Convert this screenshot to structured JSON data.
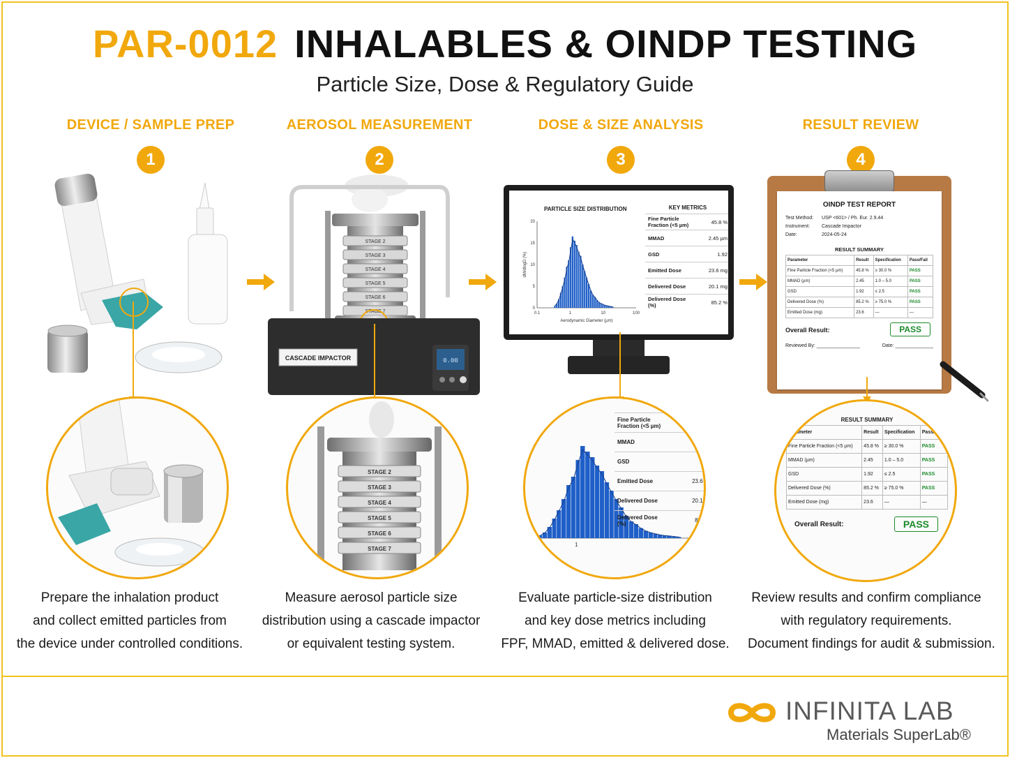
{
  "header": {
    "code": "PAR-0012",
    "title": "INHALABLES & OINDP TESTING",
    "subtitle": "Particle Size, Dose & Regulatory Guide"
  },
  "steps": [
    {
      "number": "1",
      "heading": "DEVICE / SAMPLE PREP",
      "description": [
        "Prepare the inhalation product",
        "and collect emitted particles from",
        "the device under controlled conditions."
      ]
    },
    {
      "number": "2",
      "heading": "AEROSOL MEASUREMENT",
      "description": [
        "Measure aerosol particle size",
        "distribution using a cascade impactor",
        "or equivalent testing system."
      ]
    },
    {
      "number": "3",
      "heading": "DOSE & SIZE ANALYSIS",
      "description": [
        "Evaluate particle-size distribution",
        "and key dose metrics including",
        "FPF, MMAD, emitted & delivered dose."
      ]
    },
    {
      "number": "4",
      "heading": "RESULT REVIEW",
      "description": [
        "Review results and confirm compliance",
        "with regulatory requirements.",
        "Document findings for audit & submission."
      ]
    }
  ],
  "impactor": {
    "label": "CASCADE IMPACTOR",
    "display": "0.00",
    "stage_labels": [
      "STAGE 2",
      "STAGE 3",
      "STAGE 4",
      "STAGE 5",
      "STAGE 6",
      "STAGE 7"
    ],
    "zoom_stage_labels": [
      "STAGE 2",
      "STAGE 3",
      "STAGE 4",
      "STAGE 5",
      "STAGE 6",
      "STAGE 7"
    ]
  },
  "monitor": {
    "chart_title": "PARTICLE SIZE DISTRIBUTION",
    "metrics_title": "KEY METRICS",
    "metrics": [
      {
        "label": "Fine Particle Fraction (<5 µm)",
        "value": "45.8 %"
      },
      {
        "label": "MMAD",
        "value": "2.45 µm"
      },
      {
        "label": "GSD",
        "value": "1.92"
      },
      {
        "label": "Emitted Dose",
        "value": "23.6 mg"
      },
      {
        "label": "Delivered Dose",
        "value": "20.1 mg"
      },
      {
        "label": "Delivered Dose (%)",
        "value": "85.2 %"
      }
    ]
  },
  "chart_data": {
    "type": "bar",
    "title": "PARTICLE SIZE DISTRIBUTION",
    "xlabel": "Aerodynamic Diameter (µm)",
    "ylabel": "dM/dlogD (%)",
    "x_scale": "log",
    "xlim": [
      0.1,
      100
    ],
    "ylim": [
      0,
      20
    ],
    "xticks": [
      "0.1",
      "1",
      "10",
      "100"
    ],
    "yticks": [
      "0",
      "5",
      "10",
      "15",
      "20"
    ],
    "x": [
      0.35,
      0.4,
      0.46,
      0.53,
      0.6,
      0.7,
      0.8,
      0.92,
      1.05,
      1.2,
      1.4,
      1.6,
      1.85,
      2.1,
      2.45,
      2.8,
      3.2,
      3.7,
      4.3,
      5,
      5.7,
      6.6,
      7.6,
      8.8,
      10,
      11.5,
      13,
      15,
      17.5,
      20
    ],
    "values": [
      0.5,
      1,
      2,
      3.5,
      5,
      7,
      9.5,
      11,
      14,
      16.5,
      15.5,
      14.5,
      13,
      12,
      10,
      8.5,
      7,
      5.5,
      4,
      3,
      2.5,
      1.8,
      1.3,
      1,
      0.8,
      0.6,
      0.5,
      0.4,
      0.3,
      0.2
    ],
    "fit_curve": true
  },
  "report": {
    "title": "OINDP TEST REPORT",
    "meta": [
      {
        "label": "Test Method:",
        "value": "USP <601> / Ph. Eur. 2.9.44"
      },
      {
        "label": "Instrument:",
        "value": "Cascade Impactor"
      },
      {
        "label": "Date:",
        "value": "2024-05-24"
      }
    ],
    "summary_title": "RESULT SUMMARY",
    "columns": [
      "Parameter",
      "Result",
      "Specification",
      "Pass/Fail"
    ],
    "rows": [
      [
        "Fine Particle Fraction (<5 µm)",
        "45.8 %",
        "≥ 30.0 %",
        "PASS"
      ],
      [
        "MMAD (µm)",
        "2.45",
        "1.0 – 5.0",
        "PASS"
      ],
      [
        "GSD",
        "1.92",
        "≤ 2.5",
        "PASS"
      ],
      [
        "Delivered Dose (%)",
        "85.2 %",
        "≥ 75.0 %",
        "PASS"
      ],
      [
        "Emitted Dose (mg)",
        "23.6",
        "—",
        "—"
      ]
    ],
    "overall_label": "Overall Result:",
    "overall_value": "PASS",
    "reviewed_by": "Reviewed By: ________________",
    "date_line": "Date: ______________"
  },
  "logo": {
    "name": "INFINITA LAB",
    "tagline": "Materials SuperLab®",
    "color": "#f1a80d"
  },
  "colors": {
    "accent": "#f1a80d",
    "pass": "#1b8a2a",
    "bar": "#1f5fc8",
    "teal": "#3aa6a6"
  }
}
